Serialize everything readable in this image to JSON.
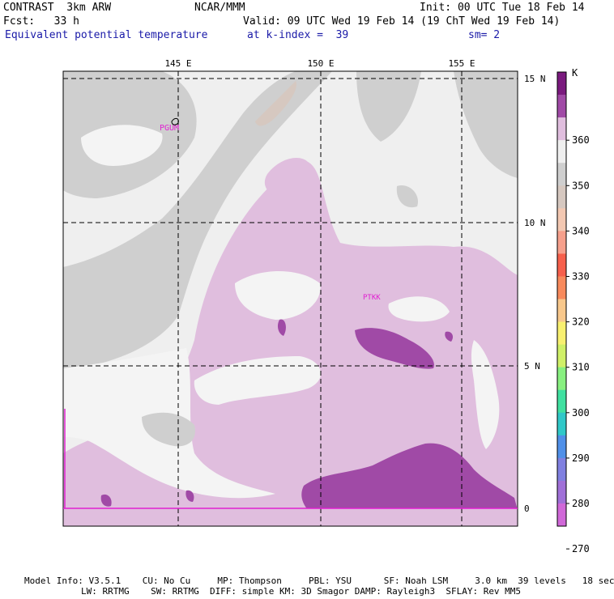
{
  "header": {
    "left1": "CONTRAST  3km ARW",
    "center1": "NCAR/MMM",
    "right1": "Init: 00 UTC Tue 18 Feb 14",
    "left2": "Fcst:   33 h",
    "right2": "Valid: 09 UTC Wed 19 Feb 14 (19 ChT Wed 19 Feb 14)",
    "field": "Equivalent potential temperature",
    "level": "at k-index =  39",
    "smooth": "sm= 2"
  },
  "map": {
    "lon_labels": [
      "145 E",
      "150 E",
      "155 E"
    ],
    "lat_labels": [
      "15 N",
      "10 N",
      "5 N",
      "0"
    ],
    "stations": [
      "PGUM",
      "PTKK"
    ]
  },
  "colorbar": {
    "unit": "K",
    "labels": [
      "360",
      "350",
      "340",
      "330",
      "320",
      "310",
      "300",
      "290",
      "280",
      "270"
    ],
    "colors": [
      "#7a1a7e",
      "#a04aa6",
      "#e0bede",
      "#efefef",
      "#cfcfcf",
      "#d6c8c0",
      "#f3c8b2",
      "#f6a08c",
      "#f6604c",
      "#f88a5c",
      "#f8c88c",
      "#f8f070",
      "#d0f068",
      "#88f080",
      "#40e0a0",
      "#30c8c8",
      "#5090e8",
      "#8080e0",
      "#a070d8",
      "#d068d8"
    ]
  },
  "footer": {
    "line1": "Model Info: V3.5.1    CU: No Cu     MP: Thompson     PBL: YSU      SF: Noah LSM     3.0 km  39 levels   18 sec",
    "line2": "LW: RRTMG    SW: RRTMG  DIFF: simple KM: 3D Smagor DAMP: Rayleigh3  SFLAY: Rev MM5"
  }
}
